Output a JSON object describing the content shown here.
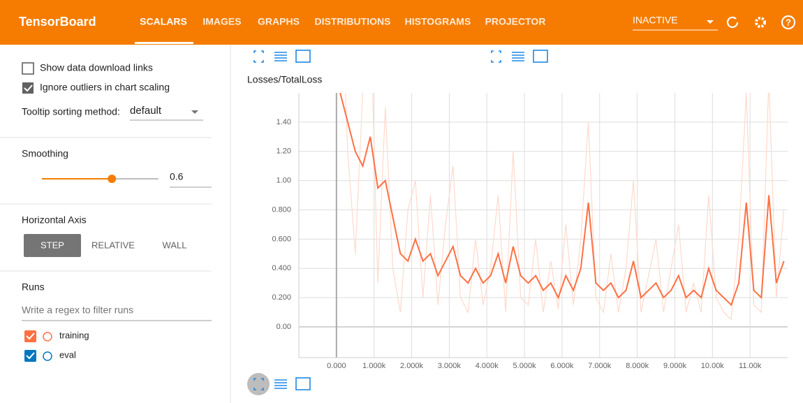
{
  "header": {
    "title": "TensorBoard",
    "tabs": [
      "SCALARS",
      "IMAGES",
      "GRAPHS",
      "DISTRIBUTIONS",
      "HISTOGRAMS",
      "PROJECTOR"
    ],
    "status": "INACTIVE"
  },
  "sidebar": {
    "show_download": "Show data download links",
    "ignore_outliers": "Ignore outliers in chart scaling",
    "tooltip_label": "Tooltip sorting method:",
    "tooltip_value": "default",
    "smoothing_label": "Smoothing",
    "smoothing_value": 0.6,
    "axis_label": "Horizontal Axis",
    "axis_options": [
      "STEP",
      "RELATIVE",
      "WALL"
    ],
    "runs_label": "Runs",
    "runs_filter": "Write a regex to filter runs",
    "runs": [
      {
        "name": "eval",
        "color": "#0277bd"
      }
    ]
  },
  "chart_data": {
    "type": "line",
    "title": "Losses/TotalLoss",
    "x": [
      100,
      300,
      500,
      700,
      900,
      1100,
      1300,
      1500,
      1700,
      1900,
      2100,
      2300,
      2500,
      2700,
      2900,
      3100,
      3300,
      3500,
      3700,
      3900,
      4100,
      4300,
      4500,
      4700,
      4900,
      5100,
      5300,
      5500,
      5700,
      5900,
      6100,
      6300,
      6500,
      6700,
      6900,
      7100,
      7300,
      7500,
      7700,
      7900,
      8100,
      8300,
      8500,
      8700,
      8900,
      9100,
      9300,
      9500,
      9700,
      9900,
      10100,
      10300,
      10500,
      10700,
      10900,
      11100,
      11300,
      11500,
      11700,
      11900
    ],
    "series": [
      {
        "name": "training",
        "color": "#ff7043",
        "raw_color": "#ffd9cc",
        "values": [
          1.6,
          1.4,
          1.2,
          1.1,
          1.3,
          0.95,
          1.0,
          0.75,
          0.5,
          0.45,
          0.6,
          0.45,
          0.5,
          0.35,
          0.45,
          0.55,
          0.35,
          0.3,
          0.4,
          0.3,
          0.35,
          0.5,
          0.3,
          0.55,
          0.35,
          0.3,
          0.35,
          0.25,
          0.3,
          0.2,
          0.35,
          0.25,
          0.4,
          0.85,
          0.3,
          0.25,
          0.3,
          0.2,
          0.25,
          0.45,
          0.2,
          0.25,
          0.3,
          0.2,
          0.25,
          0.35,
          0.2,
          0.25,
          0.2,
          0.4,
          0.25,
          0.2,
          0.15,
          0.3,
          0.85,
          0.25,
          0.2,
          0.9,
          0.3,
          0.45
        ],
        "raw_values": [
          2.5,
          1.2,
          0.5,
          1.6,
          2.2,
          0.3,
          1.5,
          0.4,
          0.1,
          0.8,
          1.0,
          0.2,
          0.9,
          0.15,
          0.7,
          1.1,
          0.2,
          0.1,
          0.6,
          0.15,
          0.4,
          0.9,
          0.1,
          1.2,
          0.2,
          0.15,
          0.6,
          0.1,
          0.45,
          0.12,
          0.7,
          0.15,
          0.6,
          1.4,
          0.2,
          0.1,
          0.5,
          0.1,
          0.4,
          1.0,
          0.1,
          0.35,
          0.6,
          0.1,
          0.4,
          0.7,
          0.1,
          0.3,
          0.1,
          0.9,
          0.2,
          0.1,
          0.05,
          0.6,
          1.6,
          0.15,
          0.1,
          1.7,
          0.2,
          0.8
        ]
      }
    ],
    "xlim": [
      -1000,
      12000
    ],
    "ylim": [
      -0.21,
      1.6
    ],
    "xticks": [
      {
        "value": 0,
        "label": "0.000"
      },
      {
        "value": 1000,
        "label": "1.000k"
      },
      {
        "value": 2000,
        "label": "2.000k"
      },
      {
        "value": 3000,
        "label": "3.000k"
      },
      {
        "value": 4000,
        "label": "4.000k"
      },
      {
        "value": 5000,
        "label": "5.000k"
      },
      {
        "value": 6000,
        "label": "6.000k"
      },
      {
        "value": 7000,
        "label": "7.000k"
      },
      {
        "value": 8000,
        "label": "8.000k"
      },
      {
        "value": 9000,
        "label": "9.000k"
      },
      {
        "value": 10000,
        "label": "10.00k"
      },
      {
        "value": 11000,
        "label": "11.00k"
      }
    ],
    "yticks": [
      {
        "value": 0,
        "label": "0.00"
      },
      {
        "value": 0.2,
        "label": "0.200"
      },
      {
        "value": 0.4,
        "label": "0.400"
      },
      {
        "value": 0.6,
        "label": "0.600"
      },
      {
        "value": 0.8,
        "label": "0.800"
      },
      {
        "value": 1.0,
        "label": "1.00"
      },
      {
        "value": 1.2,
        "label": "1.20"
      },
      {
        "value": 1.4,
        "label": "1.40"
      }
    ],
    "grid": true
  }
}
